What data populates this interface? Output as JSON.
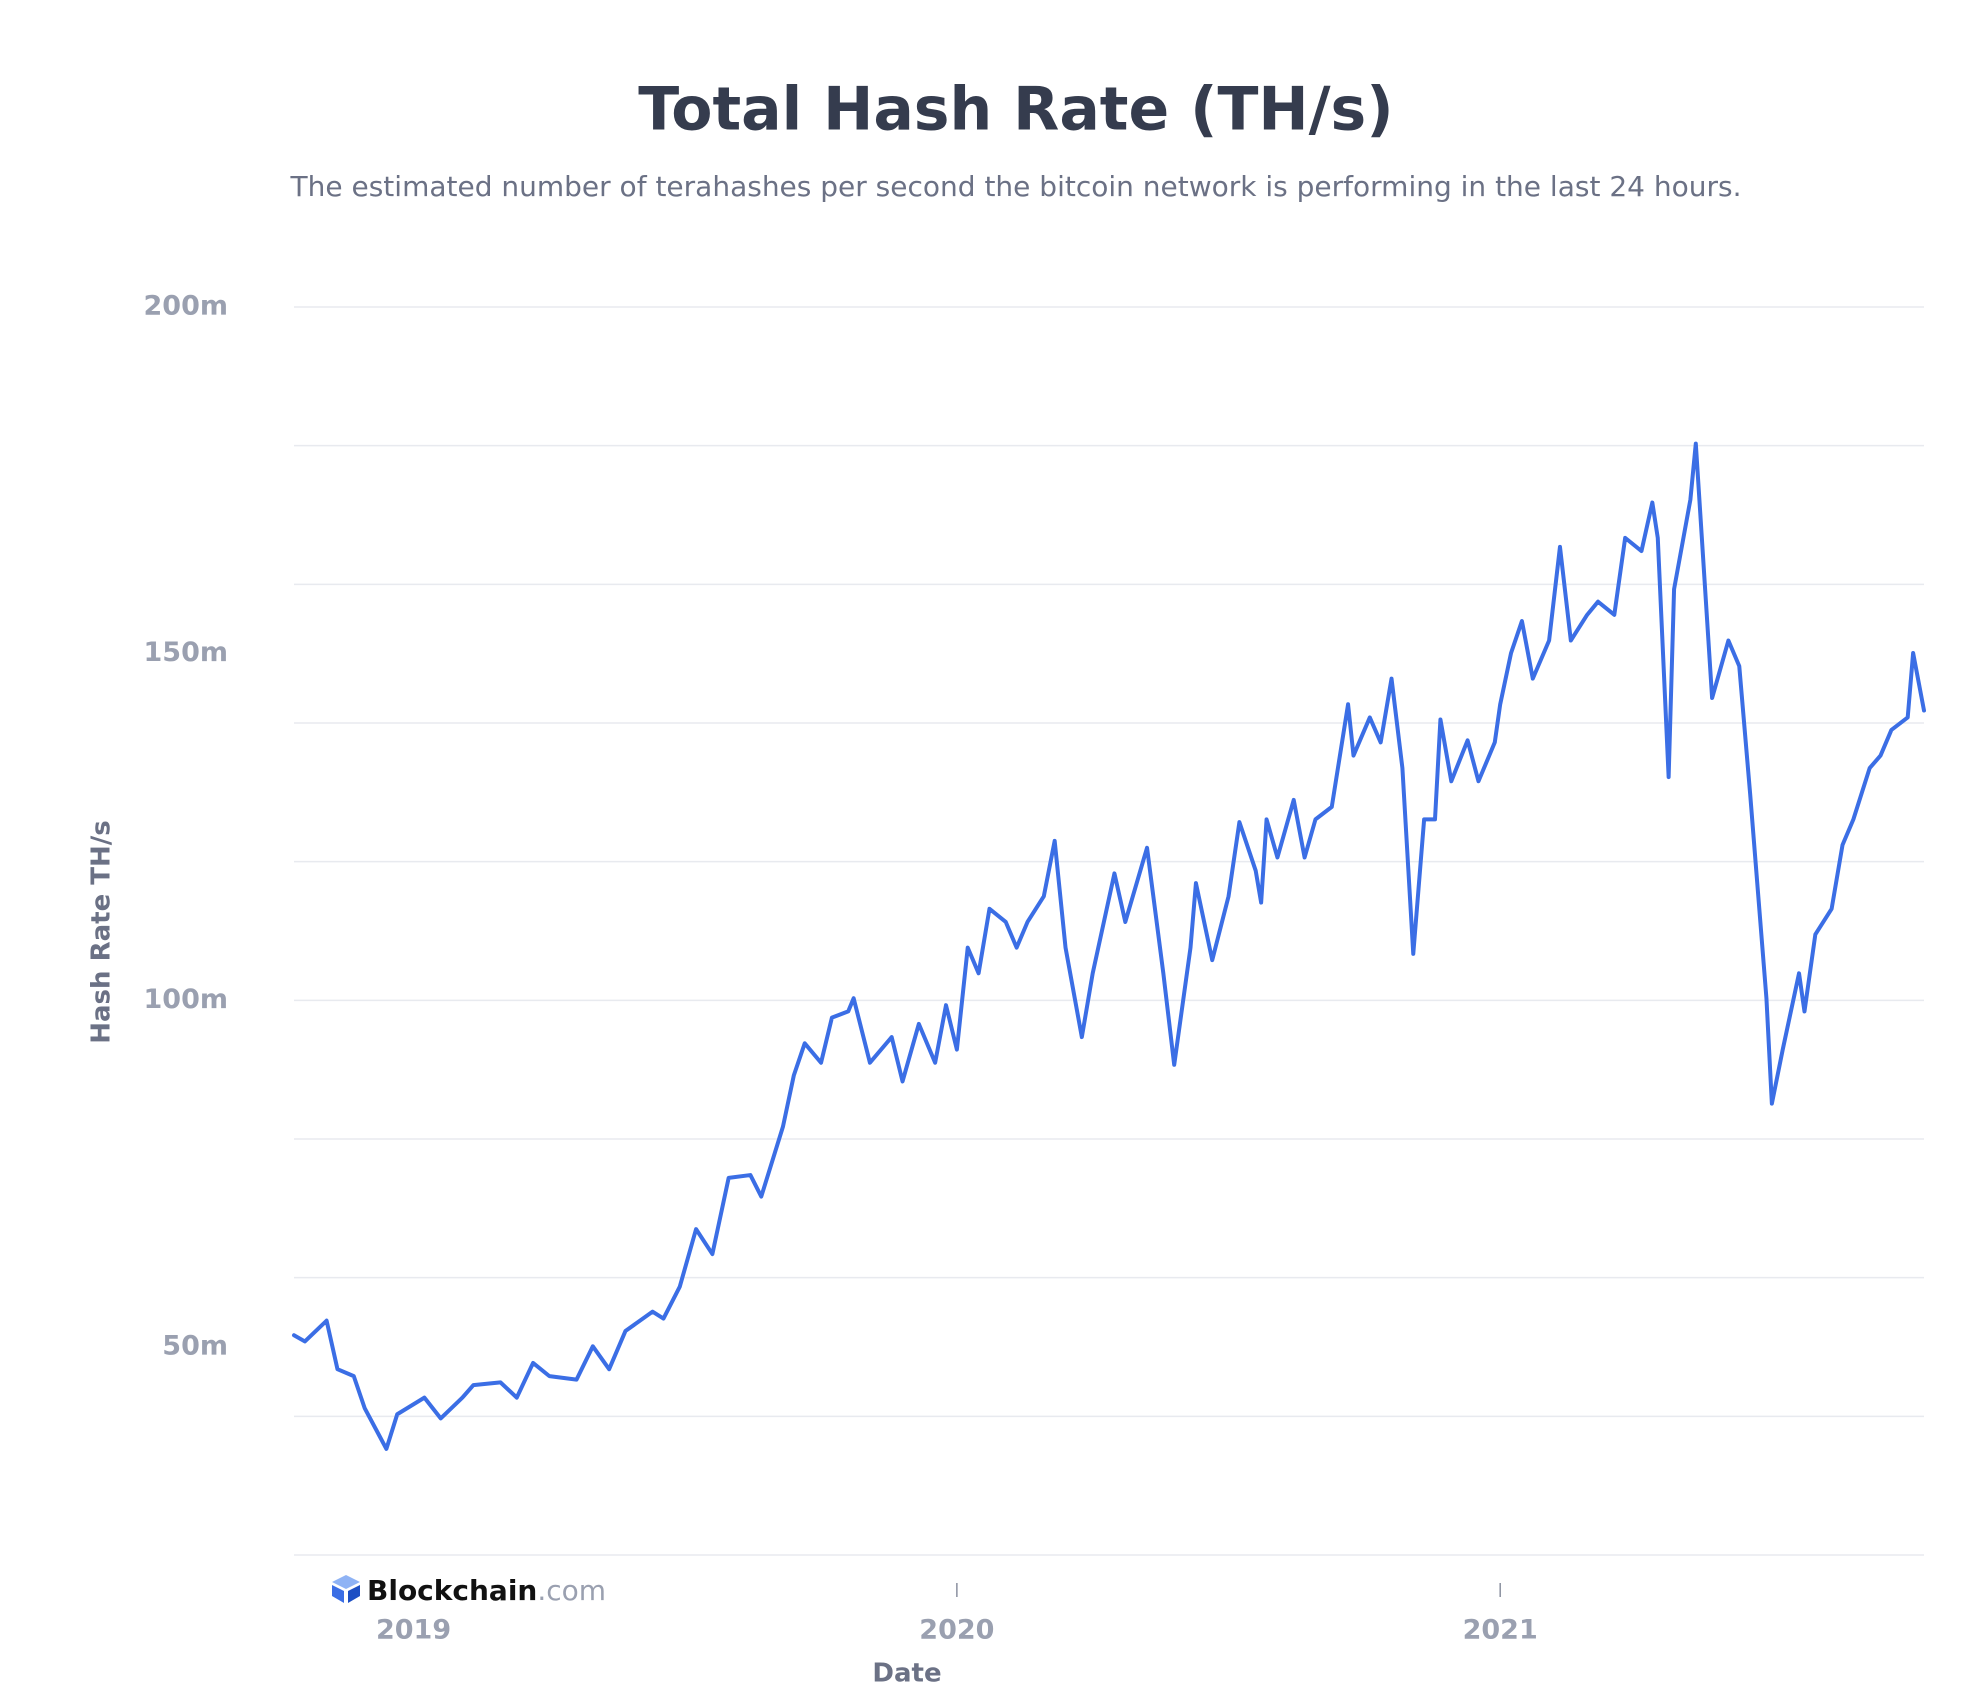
{
  "chart_data": {
    "type": "line",
    "title": "Total Hash Rate (TH/s)",
    "subtitle": "The estimated number of terahashes per second the bitcoin network is performing in the last 24 hours.",
    "y_label": "Hash Rate TH/s",
    "x_label": "Date",
    "watermark": {
      "name": "Blockchain",
      "suffix": ".com"
    },
    "color": "#3b6ee5",
    "xlim": [
      2018.78,
      2021.78
    ],
    "xticks": [
      2019,
      2020,
      2021
    ],
    "ylim": [
      20,
      200
    ],
    "yticks": [
      {
        "value": 200,
        "label": "200m"
      },
      {
        "value": 150,
        "label": "150m"
      },
      {
        "value": 100,
        "label": "100m"
      },
      {
        "value": 50,
        "label": "50m"
      }
    ],
    "ygrid": [
      20,
      40,
      60,
      80,
      100,
      120,
      140,
      160,
      180,
      200
    ],
    "x": [
      2018.78,
      2018.8,
      2018.84,
      2018.86,
      2018.89,
      2018.91,
      2018.95,
      2018.97,
      2019.02,
      2019.05,
      2019.09,
      2019.11,
      2019.16,
      2019.19,
      2019.22,
      2019.25,
      2019.3,
      2019.33,
      2019.36,
      2019.39,
      2019.44,
      2019.46,
      2019.49,
      2019.52,
      2019.55,
      2019.58,
      2019.62,
      2019.64,
      2019.68,
      2019.7,
      2019.72,
      2019.75,
      2019.77,
      2019.8,
      2019.81,
      2019.84,
      2019.88,
      2019.9,
      2019.93,
      2019.96,
      2019.98,
      2020.0,
      2020.02,
      2020.04,
      2020.06,
      2020.09,
      2020.11,
      2020.13,
      2020.16,
      2020.18,
      2020.2,
      2020.23,
      2020.25,
      2020.29,
      2020.31,
      2020.35,
      2020.38,
      2020.4,
      2020.43,
      2020.44,
      2020.47,
      2020.5,
      2020.52,
      2020.55,
      2020.56,
      2020.57,
      2020.59,
      2020.62,
      2020.64,
      2020.66,
      2020.69,
      2020.72,
      2020.73,
      2020.76,
      2020.78,
      2020.8,
      2020.82,
      2020.84,
      2020.86,
      2020.88,
      2020.89,
      2020.91,
      2020.94,
      2020.96,
      2020.99,
      2021.0,
      2021.02,
      2021.04,
      2021.06,
      2021.09,
      2021.11,
      2021.13,
      2021.16,
      2021.18,
      2021.21,
      2021.23,
      2021.26,
      2021.28,
      2021.29,
      2021.31,
      2021.32,
      2021.35,
      2021.36,
      2021.39,
      2021.42,
      2021.44,
      2021.46,
      2021.49,
      2021.5,
      2021.52,
      2021.55,
      2021.56,
      2021.58,
      2021.61,
      2021.63,
      2021.65,
      2021.68,
      2021.7,
      2021.72,
      2021.75,
      2021.76,
      2021.78
    ],
    "values": [
      51.7,
      50.8,
      53.8,
      46.8,
      45.8,
      41.2,
      35.3,
      40.3,
      42.7,
      39.7,
      42.7,
      44.5,
      44.9,
      42.7,
      47.7,
      45.8,
      45.3,
      50.1,
      46.8,
      52.3,
      55.1,
      54.1,
      58.7,
      67.0,
      63.4,
      74.4,
      74.8,
      71.7,
      81.8,
      89.2,
      93.8,
      91.0,
      97.5,
      98.4,
      100.3,
      91.0,
      94.7,
      88.3,
      96.6,
      91.0,
      99.3,
      92.9,
      107.6,
      103.9,
      113.2,
      111.3,
      107.6,
      111.3,
      115.0,
      123.0,
      107.6,
      94.7,
      103.9,
      118.3,
      111.3,
      122.0,
      103.9,
      90.7,
      107.6,
      116.9,
      105.8,
      115.0,
      125.7,
      118.7,
      114.1,
      126.1,
      120.6,
      128.9,
      120.6,
      126.1,
      127.9,
      142.7,
      135.3,
      140.8,
      137.2,
      146.4,
      133.5,
      106.7,
      126.1,
      126.1,
      140.5,
      131.6,
      137.5,
      131.6,
      137.2,
      142.7,
      150.1,
      154.7,
      146.4,
      151.9,
      165.4,
      151.9,
      155.6,
      157.5,
      155.6,
      166.7,
      164.8,
      171.8,
      166.7,
      132.2,
      159.3,
      172.2,
      180.3,
      143.6,
      151.9,
      148.2,
      129.8,
      100.3,
      85.1,
      92.9,
      103.9,
      98.4,
      109.5,
      113.2,
      122.4,
      126.1,
      133.5,
      135.3,
      139.0,
      140.8,
      150.1,
      141.8
    ]
  }
}
